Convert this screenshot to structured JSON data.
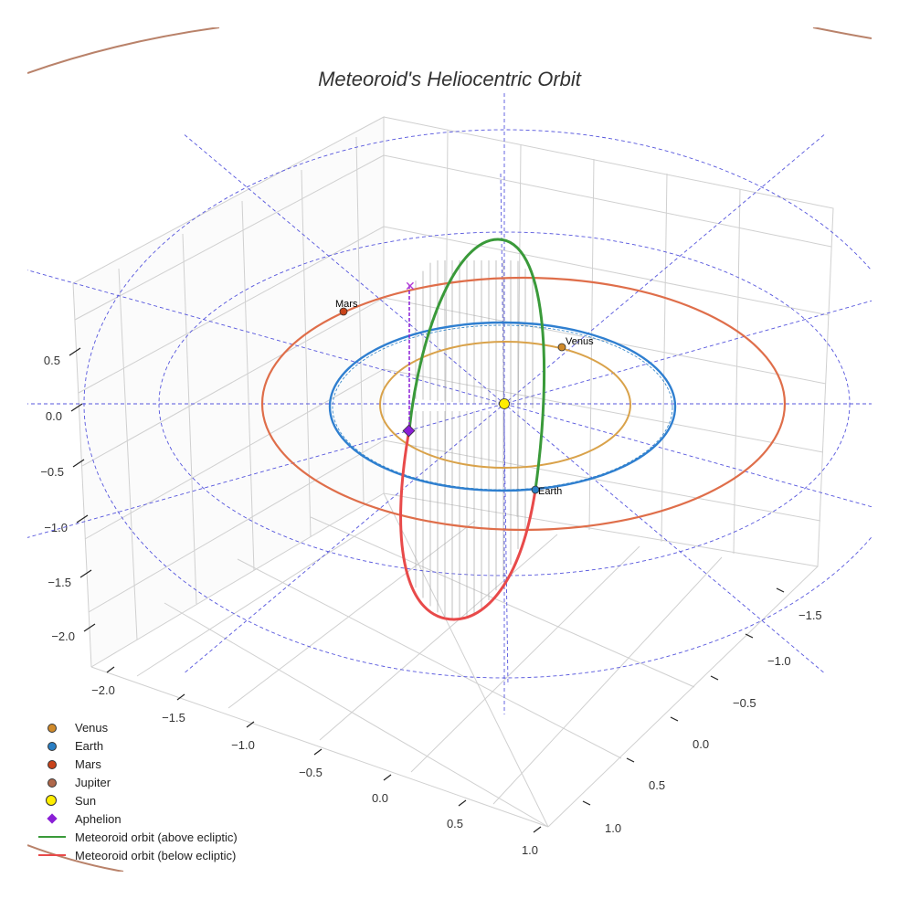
{
  "title": "Meteoroid's Heliocentric Orbit",
  "chart_data": {
    "type": "3d-orbit-plot",
    "title": "Meteoroid's Heliocentric Orbit",
    "axes": {
      "x": {
        "ticks": [
          "−2.0",
          "−1.5",
          "−1.0",
          "−0.5",
          "0.0",
          "0.5",
          "1.0"
        ]
      },
      "y": {
        "ticks": [
          "−1.5",
          "−1.0",
          "−0.5",
          "0.0",
          "0.5",
          "1.0"
        ]
      },
      "z": {
        "ticks": [
          "0.5",
          "0.0",
          "−0.5",
          "−1.0",
          "−1.5",
          "−2.0"
        ]
      }
    },
    "planets": [
      {
        "name": "Venus",
        "label": "Venus",
        "orbit_radius_au": 0.72,
        "color": "#d08a2a",
        "orbit_color": "#d9a24a"
      },
      {
        "name": "Earth",
        "label": "Earth",
        "orbit_radius_au": 1.0,
        "color": "#2a7fc4",
        "orbit_color": "#2f7fd0"
      },
      {
        "name": "Mars",
        "label": "Mars",
        "orbit_radius_au": 1.52,
        "color": "#c8431a",
        "orbit_color": "#df6e4a"
      },
      {
        "name": "Jupiter",
        "label": "Jupiter",
        "orbit_radius_au": 5.2,
        "color": "#b0684a",
        "orbit_color": "#b9826a"
      }
    ],
    "sun": {
      "name": "Sun",
      "color": "#ffee00"
    },
    "aphelion": {
      "name": "Aphelion",
      "color": "#8a1fd6"
    },
    "meteoroid_orbit": {
      "above_label": "Meteoroid orbit (above ecliptic)",
      "below_label": "Meteoroid orbit (below ecliptic)",
      "above_color": "#3a9a3a",
      "below_color": "#e84a4a"
    },
    "reference_grid": {
      "color": "#5555dd",
      "style": "dashed"
    }
  },
  "legend": [
    {
      "label": "Venus",
      "marker": "dot",
      "color": "#d08a2a"
    },
    {
      "label": "Earth",
      "marker": "dot",
      "color": "#2a7fc4"
    },
    {
      "label": "Mars",
      "marker": "dot",
      "color": "#c8431a"
    },
    {
      "label": "Jupiter",
      "marker": "dot",
      "color": "#b0684a"
    },
    {
      "label": "Sun",
      "marker": "bigdot",
      "color": "#ffee00"
    },
    {
      "label": "Aphelion",
      "marker": "diamond",
      "color": "#8a1fd6"
    },
    {
      "label": "Meteoroid orbit (above ecliptic)",
      "marker": "line",
      "color": "#3a9a3a"
    },
    {
      "label": "Meteoroid orbit (below ecliptic)",
      "marker": "line",
      "color": "#e84a4a"
    }
  ]
}
